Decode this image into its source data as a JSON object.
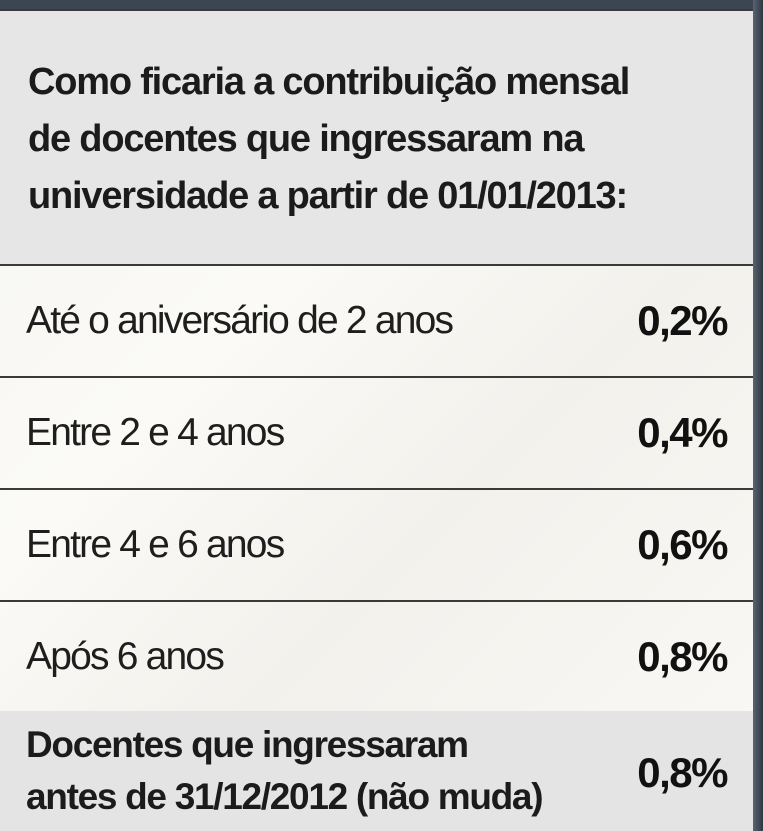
{
  "header": {
    "lines": [
      "Como ficaria a contribuição mensal",
      "de docentes que ingressaram na",
      "universidade a partir de 01/01/2013:"
    ]
  },
  "rows": [
    {
      "label": "Até o aniversário de 2 anos",
      "value": "0,2%"
    },
    {
      "label": "Entre 2 e 4 anos",
      "value": "0,4%"
    },
    {
      "label": "Entre 4 e 6 anos",
      "value": "0,6%"
    },
    {
      "label": "Após 6 anos",
      "value": "0,8%"
    }
  ],
  "footer": {
    "lines": [
      "Docentes que ingressaram",
      "antes de 31/12/2012 (não muda)"
    ],
    "value": "0,8%"
  }
}
